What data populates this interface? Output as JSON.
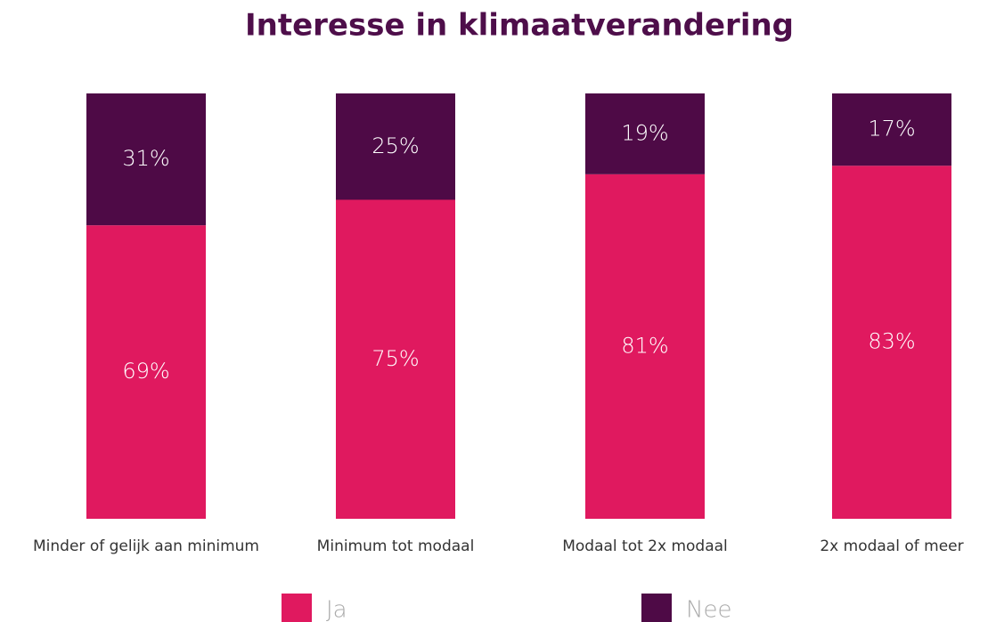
{
  "chart_data": {
    "type": "stacked_bar",
    "title": "Interesse in klimaatverandering",
    "categories": [
      "Minder of gelijk aan minimum",
      "Minimum tot modaal",
      "Modaal tot 2x modaal",
      "2x modaal of meer"
    ],
    "series": [
      {
        "name": "Ja",
        "color": "#e0195f",
        "values": [
          69,
          75,
          81,
          83
        ],
        "value_labels": [
          "69%",
          "75%",
          "81%",
          "83%"
        ]
      },
      {
        "name": "Nee",
        "color": "#4e0a46",
        "values": [
          31,
          25,
          19,
          17
        ],
        "value_labels": [
          "31%",
          "25%",
          "19%",
          "17%"
        ]
      }
    ]
  }
}
